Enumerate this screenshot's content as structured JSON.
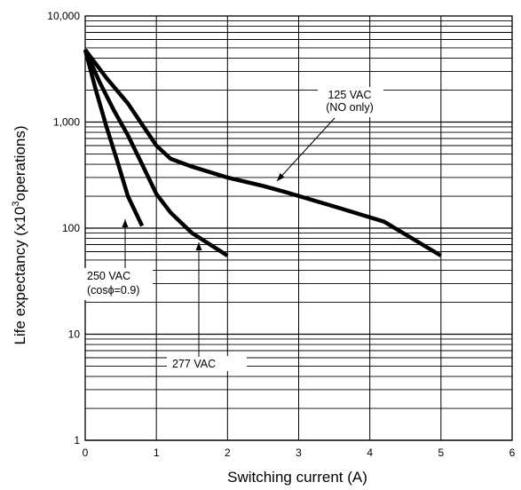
{
  "chart_data": {
    "type": "line",
    "xlabel": "Switching current (A)",
    "ylabel_main": "Life expectancy (x10",
    "ylabel_sup": "3",
    "ylabel_tail": "operations)",
    "xlim": [
      0,
      6
    ],
    "ylim": [
      1,
      10000
    ],
    "yscale": "log",
    "grid": true,
    "x_ticks": [
      {
        "value": 0,
        "label": "0"
      },
      {
        "value": 1,
        "label": "1"
      },
      {
        "value": 2,
        "label": "2"
      },
      {
        "value": 3,
        "label": "3"
      },
      {
        "value": 4,
        "label": "4"
      },
      {
        "value": 5,
        "label": "5"
      },
      {
        "value": 6,
        "label": "6"
      }
    ],
    "y_ticks": [
      {
        "value": 1,
        "label": "1"
      },
      {
        "value": 10,
        "label": "10"
      },
      {
        "value": 100,
        "label": "100"
      },
      {
        "value": 1000,
        "label": "1,000"
      },
      {
        "value": 10000,
        "label": "10,000"
      }
    ],
    "series": [
      {
        "name": "125 VAC (NO only)",
        "x": [
          0,
          0.3,
          0.6,
          0.8,
          1.0,
          1.2,
          1.5,
          2.0,
          2.5,
          2.8,
          3.5,
          4.2,
          5.0
        ],
        "y": [
          4800,
          2600,
          1500,
          950,
          600,
          450,
          380,
          300,
          250,
          220,
          160,
          115,
          55
        ]
      },
      {
        "name": "277 VAC",
        "x": [
          0,
          0.2,
          0.4,
          0.6,
          0.8,
          1.0,
          1.2,
          1.5,
          2.0
        ],
        "y": [
          4800,
          2400,
          1300,
          750,
          400,
          210,
          140,
          90,
          55
        ]
      },
      {
        "name": "250 VAC (cosϕ=0.9)",
        "x": [
          0,
          0.15,
          0.3,
          0.45,
          0.6,
          0.8
        ],
        "y": [
          4800,
          2000,
          900,
          430,
          200,
          105
        ]
      }
    ],
    "annotations": [
      {
        "lines": [
          "125 VAC",
          "(NO only)"
        ]
      },
      {
        "lines": [
          "277 VAC"
        ]
      },
      {
        "lines": [
          "250 VAC",
          "(cosϕ=0.9)"
        ]
      }
    ]
  }
}
